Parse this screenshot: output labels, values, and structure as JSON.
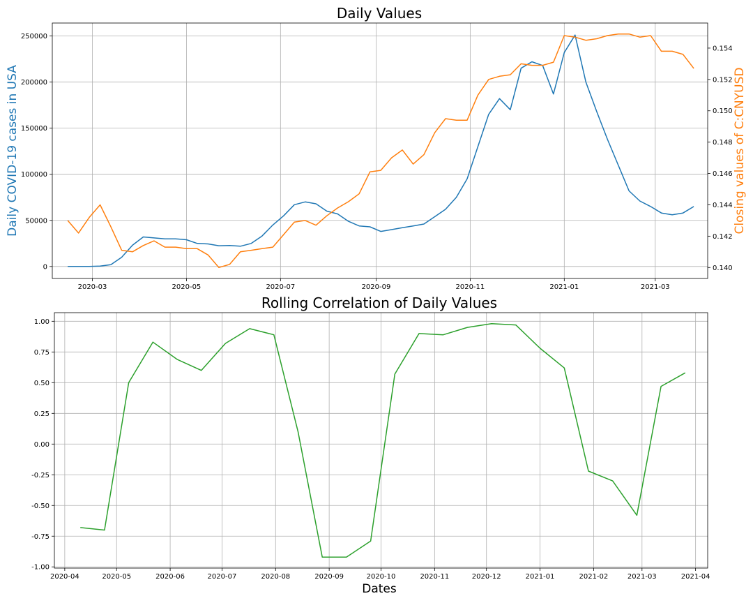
{
  "chart_data": [
    {
      "type": "line",
      "title": "Daily Values",
      "xlabel": "",
      "ylabel": "Daily COVID-19 cases in USA",
      "y2label": "Closing values of C:CNYUSD",
      "ylabel_color": "#1f77b4",
      "y2label_color": "#ff7f0e",
      "grid": true,
      "xlim": [
        "2020-02-04",
        "2021-04-04"
      ],
      "ylim": [
        -13000,
        264000
      ],
      "y2lim": [
        0.1393,
        0.1556
      ],
      "x_ticks": [
        "2020-03",
        "2020-05",
        "2020-07",
        "2020-09",
        "2020-11",
        "2021-01",
        "2021-03"
      ],
      "y_ticks": [
        0,
        50000,
        100000,
        150000,
        200000,
        250000
      ],
      "y2_ticks": [
        0.14,
        0.142,
        0.144,
        0.146,
        0.148,
        0.15,
        0.152,
        0.154
      ],
      "series": [
        {
          "axis": "left",
          "color": "#1f77b4",
          "x": [
            "2020-02-14",
            "2020-02-21",
            "2020-02-28",
            "2020-03-06",
            "2020-03-13",
            "2020-03-20",
            "2020-03-27",
            "2020-04-03",
            "2020-04-10",
            "2020-04-17",
            "2020-04-24",
            "2020-05-01",
            "2020-05-08",
            "2020-05-15",
            "2020-05-22",
            "2020-05-29",
            "2020-06-05",
            "2020-06-12",
            "2020-06-19",
            "2020-06-26",
            "2020-07-03",
            "2020-07-10",
            "2020-07-17",
            "2020-07-24",
            "2020-07-31",
            "2020-08-07",
            "2020-08-14",
            "2020-08-21",
            "2020-08-28",
            "2020-09-04",
            "2020-09-11",
            "2020-09-18",
            "2020-09-25",
            "2020-10-02",
            "2020-10-09",
            "2020-10-16",
            "2020-10-23",
            "2020-10-30",
            "2020-11-06",
            "2020-11-13",
            "2020-11-20",
            "2020-11-27",
            "2020-12-04",
            "2020-12-11",
            "2020-12-18",
            "2020-12-25",
            "2021-01-01",
            "2021-01-08",
            "2021-01-15",
            "2021-01-22",
            "2021-01-29",
            "2021-02-05",
            "2021-02-12",
            "2021-02-19",
            "2021-02-26",
            "2021-03-05",
            "2021-03-12",
            "2021-03-19",
            "2021-03-26"
          ],
          "values": [
            0,
            0,
            0,
            500,
            2000,
            10000,
            23000,
            32000,
            31000,
            30000,
            30000,
            29000,
            25000,
            24500,
            22500,
            22800,
            22000,
            25000,
            33000,
            45000,
            55000,
            67000,
            70000,
            68000,
            60000,
            57000,
            49000,
            44000,
            43000,
            38000,
            40000,
            42000,
            44000,
            46000,
            54000,
            62000,
            75000,
            95000,
            130000,
            165000,
            182000,
            170000,
            215000,
            222000,
            218000,
            187000,
            232000,
            251000,
            200000,
            168000,
            138000,
            110000,
            82000,
            71000,
            65000,
            58000,
            56000,
            58000,
            65000
          ]
        },
        {
          "axis": "right",
          "color": "#ff7f0e",
          "x": [
            "2020-02-14",
            "2020-02-21",
            "2020-02-28",
            "2020-03-06",
            "2020-03-13",
            "2020-03-20",
            "2020-03-27",
            "2020-04-03",
            "2020-04-10",
            "2020-04-17",
            "2020-04-24",
            "2020-05-01",
            "2020-05-08",
            "2020-05-15",
            "2020-05-22",
            "2020-05-29",
            "2020-06-05",
            "2020-06-12",
            "2020-06-19",
            "2020-06-26",
            "2020-07-03",
            "2020-07-10",
            "2020-07-17",
            "2020-07-24",
            "2020-07-31",
            "2020-08-07",
            "2020-08-14",
            "2020-08-21",
            "2020-08-28",
            "2020-09-04",
            "2020-09-11",
            "2020-09-18",
            "2020-09-25",
            "2020-10-02",
            "2020-10-09",
            "2020-10-16",
            "2020-10-23",
            "2020-10-30",
            "2020-11-06",
            "2020-11-13",
            "2020-11-20",
            "2020-11-27",
            "2020-12-04",
            "2020-12-11",
            "2020-12-18",
            "2020-12-25",
            "2021-01-01",
            "2021-01-08",
            "2021-01-15",
            "2021-01-22",
            "2021-01-29",
            "2021-02-05",
            "2021-02-12",
            "2021-02-19",
            "2021-02-26",
            "2021-03-05",
            "2021-03-12",
            "2021-03-19",
            "2021-03-26"
          ],
          "values": [
            0.143,
            0.1422,
            0.1432,
            0.144,
            0.1426,
            0.1411,
            0.141,
            0.1414,
            0.1417,
            0.1413,
            0.1413,
            0.1412,
            0.1412,
            0.1408,
            0.14,
            0.1402,
            0.141,
            0.1411,
            0.1412,
            0.1413,
            0.1421,
            0.1429,
            0.143,
            0.1427,
            0.1433,
            0.1438,
            0.1442,
            0.1447,
            0.1461,
            0.1462,
            0.147,
            0.1475,
            0.1466,
            0.1472,
            0.1486,
            0.1495,
            0.1494,
            0.1494,
            0.151,
            0.152,
            0.1522,
            0.1523,
            0.153,
            0.1529,
            0.1529,
            0.1531,
            0.1548,
            0.1547,
            0.1545,
            0.1546,
            0.1548,
            0.1549,
            0.1549,
            0.1547,
            0.1548,
            0.1538,
            0.1538,
            0.1536,
            0.1527
          ]
        }
      ]
    },
    {
      "type": "line",
      "title": "Rolling Correlation of Daily Values",
      "xlabel": "Dates",
      "ylabel": "",
      "grid": true,
      "xlim": [
        "2020-03-26",
        "2021-04-08"
      ],
      "ylim": [
        -1.01,
        1.07
      ],
      "x_ticks": [
        "2020-04",
        "2020-05",
        "2020-06",
        "2020-07",
        "2020-08",
        "2020-09",
        "2020-10",
        "2020-11",
        "2020-12",
        "2021-01",
        "2021-02",
        "2021-03",
        "2021-04"
      ],
      "y_ticks": [
        -1.0,
        -0.75,
        -0.5,
        -0.25,
        0.0,
        0.25,
        0.5,
        0.75,
        1.0
      ],
      "series": [
        {
          "color": "#2ca02c",
          "x": [
            "2020-04-10",
            "2020-04-24",
            "2020-05-08",
            "2020-05-22",
            "2020-06-05",
            "2020-06-19",
            "2020-07-03",
            "2020-07-17",
            "2020-07-31",
            "2020-08-14",
            "2020-08-28",
            "2020-09-11",
            "2020-09-25",
            "2020-10-09",
            "2020-10-23",
            "2020-11-06",
            "2020-11-20",
            "2020-12-04",
            "2020-12-18",
            "2021-01-01",
            "2021-01-15",
            "2021-01-29",
            "2021-02-12",
            "2021-02-26",
            "2021-03-12",
            "2021-03-26"
          ],
          "values": [
            -0.68,
            -0.7,
            0.5,
            0.83,
            0.69,
            0.6,
            0.82,
            0.94,
            0.89,
            0.1,
            -0.92,
            -0.92,
            -0.79,
            0.57,
            0.9,
            0.89,
            0.95,
            0.98,
            0.97,
            0.78,
            0.62,
            -0.22,
            -0.3,
            -0.58,
            0.47,
            0.58
          ]
        }
      ]
    }
  ]
}
